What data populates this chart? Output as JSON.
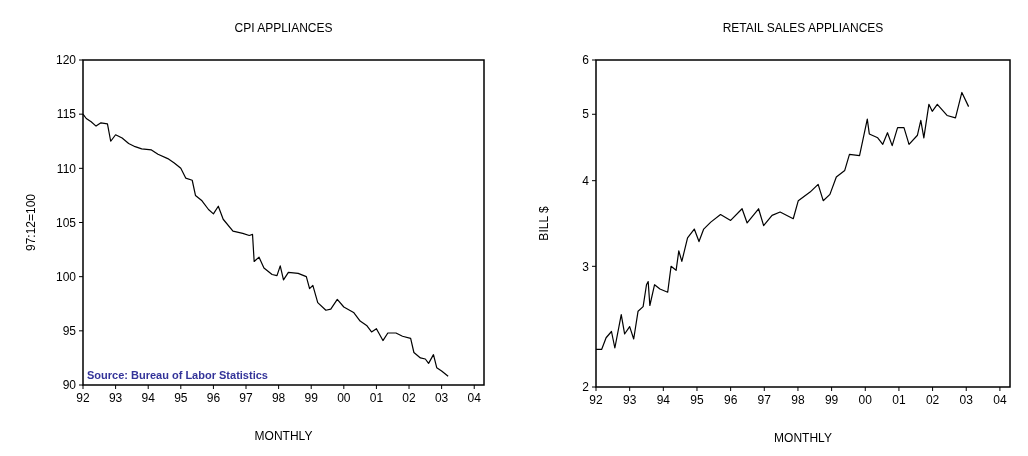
{
  "chart_data": [
    {
      "type": "line",
      "title": "CPI APPLIANCES",
      "xlabel": "MONTHLY",
      "ylabel": "97:12=100",
      "annotations": [
        "Source: Bureau of Labor Statistics"
      ],
      "xlim": [
        1992,
        2004.3
      ],
      "ylim": [
        90,
        120
      ],
      "yticks": [
        90,
        95,
        100,
        105,
        110,
        115,
        120
      ],
      "xticks": [
        {
          "value": 1992,
          "label": "92"
        },
        {
          "value": 1993,
          "label": "93"
        },
        {
          "value": 1994,
          "label": "94"
        },
        {
          "value": 1995,
          "label": "95"
        },
        {
          "value": 1996,
          "label": "96"
        },
        {
          "value": 1997,
          "label": "97"
        },
        {
          "value": 1998,
          "label": "98"
        },
        {
          "value": 1999,
          "label": "99"
        },
        {
          "value": 2000,
          "label": "00"
        },
        {
          "value": 2001,
          "label": "01"
        },
        {
          "value": 2002,
          "label": "02"
        },
        {
          "value": 2003,
          "label": "03"
        },
        {
          "value": 2004,
          "label": "04"
        }
      ],
      "series": [
        {
          "color": "#000000",
          "x": [
            1992.0,
            1992.1,
            1992.25,
            1992.4,
            1992.55,
            1992.75,
            1992.85,
            1993.0,
            1993.2,
            1993.4,
            1993.6,
            1993.8,
            1994.1,
            1994.3,
            1994.6,
            1994.8,
            1995.0,
            1995.15,
            1995.35,
            1995.45,
            1995.65,
            1995.85,
            1996.0,
            1996.15,
            1996.3,
            1996.6,
            1996.9,
            1997.1,
            1997.2,
            1997.25,
            1997.4,
            1997.55,
            1997.8,
            1997.95,
            1998.05,
            1998.15,
            1998.3,
            1998.6,
            1998.85,
            1998.95,
            1999.05,
            1999.2,
            1999.45,
            1999.6,
            1999.8,
            2000.0,
            2000.3,
            2000.5,
            2000.7,
            2000.85,
            2001.0,
            2001.2,
            2001.35,
            2001.6,
            2001.8,
            2002.05,
            2002.15,
            2002.35,
            2002.5,
            2002.6,
            2002.75,
            2002.85,
            2003.0,
            2003.2
          ],
          "values": [
            115,
            114.6,
            114.3,
            113.9,
            114.2,
            114.1,
            112.5,
            113.1,
            112.8,
            112.3,
            112.0,
            111.8,
            111.7,
            111.3,
            110.9,
            110.5,
            110.0,
            109.1,
            108.9,
            107.5,
            107.0,
            106.2,
            105.8,
            106.5,
            105.3,
            104.2,
            104.0,
            103.8,
            103.9,
            101.4,
            101.8,
            100.8,
            100.2,
            100.1,
            101.0,
            99.7,
            100.4,
            100.3,
            100.0,
            98.9,
            99.2,
            97.6,
            96.9,
            97.0,
            97.9,
            97.2,
            96.7,
            95.9,
            95.5,
            94.9,
            95.2,
            94.1,
            94.8,
            94.8,
            94.5,
            94.3,
            93.0,
            92.5,
            92.4,
            92.0,
            92.8,
            91.6,
            91.3,
            90.8
          ]
        }
      ]
    },
    {
      "type": "line",
      "title": "RETAIL SALES APPLIANCES",
      "xlabel": "MONTHLY",
      "ylabel": "BILL $",
      "log": true,
      "xlim": [
        1992,
        2004.3
      ],
      "ylim": [
        2,
        6
      ],
      "yticks": [
        2,
        3,
        4,
        5,
        6
      ],
      "xticks": [
        {
          "value": 1992,
          "label": "92"
        },
        {
          "value": 1993,
          "label": "93"
        },
        {
          "value": 1994,
          "label": "94"
        },
        {
          "value": 1995,
          "label": "95"
        },
        {
          "value": 1996,
          "label": "96"
        },
        {
          "value": 1997,
          "label": "97"
        },
        {
          "value": 1998,
          "label": "98"
        },
        {
          "value": 1999,
          "label": "99"
        },
        {
          "value": 2000,
          "label": "00"
        },
        {
          "value": 2001,
          "label": "01"
        },
        {
          "value": 2002,
          "label": "02"
        },
        {
          "value": 2003,
          "label": "03"
        },
        {
          "value": 2004,
          "label": "04"
        }
      ],
      "series": [
        {
          "color": "#000000",
          "x": [
            1992.0,
            1992.17,
            1992.3,
            1992.46,
            1992.56,
            1992.75,
            1992.85,
            1993.0,
            1993.12,
            1993.25,
            1993.4,
            1993.5,
            1993.55,
            1993.6,
            1993.74,
            1993.9,
            1994.13,
            1994.23,
            1994.38,
            1994.46,
            1994.55,
            1994.72,
            1994.92,
            1995.06,
            1995.2,
            1995.41,
            1995.7,
            1996.0,
            1996.34,
            1996.49,
            1996.83,
            1996.98,
            1997.23,
            1997.47,
            1997.86,
            1998.01,
            1998.36,
            1998.6,
            1998.75,
            1998.95,
            1999.14,
            1999.39,
            1999.53,
            1999.83,
            2000.06,
            2000.12,
            2000.37,
            2000.52,
            2000.66,
            2000.8,
            2000.96,
            2001.15,
            2001.3,
            2001.55,
            2001.65,
            2001.74,
            2001.89,
            2001.99,
            2002.14,
            2002.43,
            2002.68,
            2002.87,
            2003.07
          ],
          "values": [
            2.27,
            2.27,
            2.36,
            2.41,
            2.28,
            2.55,
            2.39,
            2.45,
            2.35,
            2.58,
            2.62,
            2.82,
            2.85,
            2.63,
            2.82,
            2.78,
            2.75,
            3.0,
            2.96,
            3.16,
            3.05,
            3.3,
            3.4,
            3.26,
            3.4,
            3.48,
            3.57,
            3.5,
            3.64,
            3.47,
            3.64,
            3.44,
            3.56,
            3.6,
            3.52,
            3.74,
            3.85,
            3.95,
            3.74,
            3.82,
            4.05,
            4.14,
            4.37,
            4.35,
            4.92,
            4.68,
            4.62,
            4.52,
            4.7,
            4.5,
            4.78,
            4.78,
            4.52,
            4.66,
            4.9,
            4.62,
            5.17,
            5.05,
            5.17,
            4.98,
            4.94,
            5.38,
            5.13
          ]
        }
      ]
    }
  ]
}
